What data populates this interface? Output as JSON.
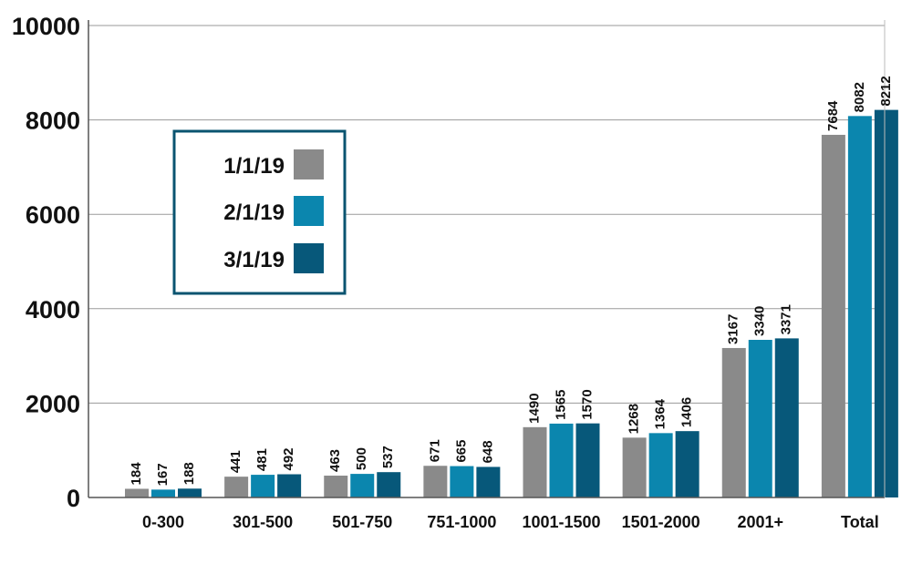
{
  "chart_data": {
    "type": "bar",
    "categories": [
      "0-300",
      "301-500",
      "501-750",
      "751-1000",
      "1001-1500",
      "1501-2000",
      "2001+",
      "Total"
    ],
    "series": [
      {
        "name": "1/1/19",
        "color": "#8a8a8a",
        "values": [
          184,
          441,
          463,
          671,
          1490,
          1268,
          3167,
          7684
        ]
      },
      {
        "name": "2/1/19",
        "color": "#0b86ae",
        "values": [
          167,
          481,
          500,
          665,
          1565,
          1364,
          3340,
          8082
        ]
      },
      {
        "name": "3/1/19",
        "color": "#07587a",
        "values": [
          188,
          492,
          537,
          648,
          1570,
          1406,
          3371,
          8212
        ]
      }
    ],
    "yticks": [
      "0",
      "2000",
      "4000",
      "6000",
      "8000",
      "10000"
    ],
    "ylim": [
      0,
      10000
    ],
    "grid": true,
    "legend_position": "upper-left",
    "legend_border_color": "#0a5470",
    "xlabel": "",
    "ylabel": "",
    "title": ""
  }
}
